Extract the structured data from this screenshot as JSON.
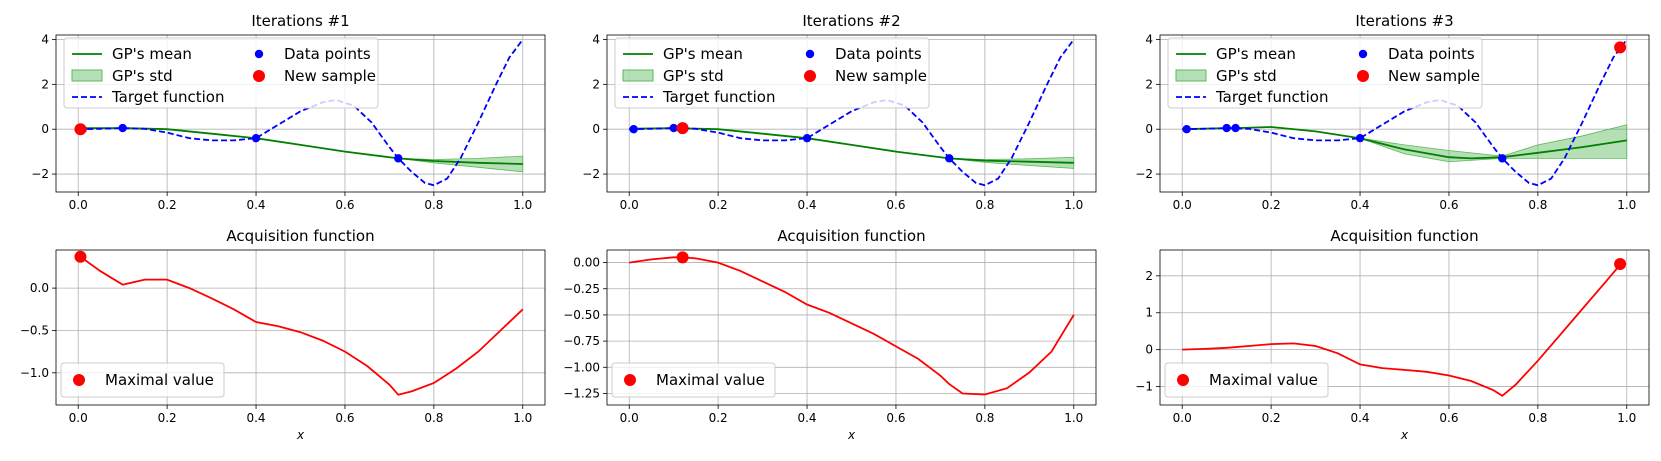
{
  "colors": {
    "mean": "#008000",
    "std_fill": "#5cb85c",
    "target": "#0000ff",
    "data_point": "#0000ff",
    "new_sample": "#ff0000",
    "acquisition": "#ff0000",
    "grid": "#b0b0b0"
  },
  "chart_data": [
    {
      "type": "line",
      "title": "Iterations #1",
      "xlabel": "",
      "ylabel": "",
      "xlim": [
        -0.05,
        1.05
      ],
      "ylim": [
        -2.8,
        4.2
      ],
      "xticks": [
        0.0,
        0.2,
        0.4,
        0.6,
        0.8,
        1.0
      ],
      "xtick_labels": [
        "0.0",
        "0.2",
        "0.4",
        "0.6",
        "0.8",
        "1.0"
      ],
      "yticks": [
        -2,
        0,
        2,
        4
      ],
      "ytick_labels": [
        "−2",
        "0",
        "2",
        "4"
      ],
      "legend": [
        "GP's mean",
        "GP's std",
        "Target function",
        "Data points",
        "New sample"
      ],
      "series": [
        {
          "name": "Target function",
          "x": [
            0,
            0.05,
            0.1,
            0.15,
            0.2,
            0.25,
            0.3,
            0.35,
            0.4,
            0.45,
            0.5,
            0.55,
            0.58,
            0.62,
            0.66,
            0.7,
            0.72,
            0.75,
            0.78,
            0.8,
            0.83,
            0.86,
            0.9,
            0.94,
            0.97,
            1.0
          ],
          "y": [
            0,
            0.02,
            0.05,
            0.02,
            -0.15,
            -0.4,
            -0.5,
            -0.5,
            -0.4,
            0.2,
            0.8,
            1.2,
            1.3,
            1.05,
            0.3,
            -0.8,
            -1.3,
            -1.9,
            -2.4,
            -2.5,
            -2.2,
            -1.3,
            0.3,
            2.0,
            3.2,
            4.0
          ]
        },
        {
          "name": "GP's mean",
          "x": [
            0,
            0.1,
            0.2,
            0.3,
            0.4,
            0.5,
            0.6,
            0.72,
            0.8,
            0.9,
            1.0
          ],
          "y": [
            0.05,
            0.05,
            0.0,
            -0.2,
            -0.4,
            -0.7,
            -1.0,
            -1.3,
            -1.42,
            -1.5,
            -1.55
          ]
        },
        {
          "name": "GP's std upper",
          "x": [
            0.72,
            0.8,
            0.9,
            1.0
          ],
          "y": [
            -1.3,
            -1.35,
            -1.3,
            -1.2
          ]
        },
        {
          "name": "GP's std lower",
          "x": [
            0.72,
            0.8,
            0.9,
            1.0
          ],
          "y": [
            -1.3,
            -1.5,
            -1.7,
            -1.9
          ]
        },
        {
          "name": "Data points",
          "x": [
            0.01,
            0.1,
            0.4,
            0.72
          ],
          "y": [
            0.0,
            0.05,
            -0.4,
            -1.3
          ]
        },
        {
          "name": "New sample",
          "x": [
            0.005
          ],
          "y": [
            0.0
          ]
        }
      ]
    },
    {
      "type": "line",
      "title": "Iterations #2",
      "xlabel": "",
      "ylabel": "",
      "xlim": [
        -0.05,
        1.05
      ],
      "ylim": [
        -2.8,
        4.2
      ],
      "xticks": [
        0.0,
        0.2,
        0.4,
        0.6,
        0.8,
        1.0
      ],
      "xtick_labels": [
        "0.0",
        "0.2",
        "0.4",
        "0.6",
        "0.8",
        "1.0"
      ],
      "yticks": [
        -2,
        0,
        2,
        4
      ],
      "ytick_labels": [
        "−2",
        "0",
        "2",
        "4"
      ],
      "legend": [
        "GP's mean",
        "GP's std",
        "Target function",
        "Data points",
        "New sample"
      ],
      "series": [
        {
          "name": "Target function",
          "x": [
            0,
            0.05,
            0.1,
            0.15,
            0.2,
            0.25,
            0.3,
            0.35,
            0.4,
            0.45,
            0.5,
            0.55,
            0.58,
            0.62,
            0.66,
            0.7,
            0.72,
            0.75,
            0.78,
            0.8,
            0.83,
            0.86,
            0.9,
            0.94,
            0.97,
            1.0
          ],
          "y": [
            0,
            0.02,
            0.05,
            0.02,
            -0.15,
            -0.4,
            -0.5,
            -0.5,
            -0.4,
            0.2,
            0.8,
            1.2,
            1.3,
            1.05,
            0.3,
            -0.8,
            -1.3,
            -1.9,
            -2.4,
            -2.5,
            -2.2,
            -1.3,
            0.3,
            2.0,
            3.2,
            4.0
          ]
        },
        {
          "name": "GP's mean",
          "x": [
            0,
            0.1,
            0.2,
            0.3,
            0.4,
            0.5,
            0.6,
            0.72,
            0.8,
            0.9,
            1.0
          ],
          "y": [
            0.02,
            0.05,
            0.0,
            -0.2,
            -0.4,
            -0.7,
            -1.0,
            -1.3,
            -1.4,
            -1.45,
            -1.5
          ]
        },
        {
          "name": "GP's std upper",
          "x": [
            0.72,
            0.8,
            0.9,
            1.0
          ],
          "y": [
            -1.3,
            -1.35,
            -1.32,
            -1.25
          ]
        },
        {
          "name": "GP's std lower",
          "x": [
            0.72,
            0.8,
            0.9,
            1.0
          ],
          "y": [
            -1.3,
            -1.48,
            -1.62,
            -1.75
          ]
        },
        {
          "name": "Data points",
          "x": [
            0.01,
            0.1,
            0.4,
            0.72
          ],
          "y": [
            0.0,
            0.05,
            -0.4,
            -1.3
          ]
        },
        {
          "name": "New sample",
          "x": [
            0.12
          ],
          "y": [
            0.05
          ]
        }
      ]
    },
    {
      "type": "line",
      "title": "Iterations #3",
      "xlabel": "",
      "ylabel": "",
      "xlim": [
        -0.05,
        1.05
      ],
      "ylim": [
        -2.8,
        4.2
      ],
      "xticks": [
        0.0,
        0.2,
        0.4,
        0.6,
        0.8,
        1.0
      ],
      "xtick_labels": [
        "0.0",
        "0.2",
        "0.4",
        "0.6",
        "0.8",
        "1.0"
      ],
      "yticks": [
        -2,
        0,
        2,
        4
      ],
      "ytick_labels": [
        "−2",
        "0",
        "2",
        "4"
      ],
      "legend": [
        "GP's mean",
        "GP's std",
        "Target function",
        "Data points",
        "New sample"
      ],
      "series": [
        {
          "name": "Target function",
          "x": [
            0,
            0.05,
            0.1,
            0.15,
            0.2,
            0.25,
            0.3,
            0.35,
            0.4,
            0.45,
            0.5,
            0.55,
            0.58,
            0.62,
            0.66,
            0.7,
            0.72,
            0.75,
            0.78,
            0.8,
            0.83,
            0.86,
            0.9,
            0.94,
            0.97,
            1.0
          ],
          "y": [
            0,
            0.02,
            0.05,
            0.02,
            -0.15,
            -0.4,
            -0.5,
            -0.5,
            -0.4,
            0.2,
            0.8,
            1.2,
            1.3,
            1.05,
            0.3,
            -0.8,
            -1.3,
            -1.9,
            -2.4,
            -2.5,
            -2.2,
            -1.3,
            0.3,
            2.0,
            3.2,
            4.0
          ]
        },
        {
          "name": "GP's mean",
          "x": [
            0,
            0.1,
            0.12,
            0.2,
            0.3,
            0.4,
            0.5,
            0.6,
            0.65,
            0.72,
            0.8,
            0.9,
            1.0
          ],
          "y": [
            0.0,
            0.05,
            0.05,
            0.1,
            -0.1,
            -0.4,
            -0.9,
            -1.25,
            -1.3,
            -1.25,
            -1.05,
            -0.8,
            -0.5
          ]
        },
        {
          "name": "GP's std upper",
          "x": [
            0.4,
            0.5,
            0.6,
            0.72,
            0.8,
            0.9,
            1.0
          ],
          "y": [
            -0.4,
            -0.7,
            -0.95,
            -1.2,
            -0.7,
            -0.3,
            0.2
          ]
        },
        {
          "name": "GP's std lower",
          "x": [
            0.4,
            0.5,
            0.6,
            0.72,
            0.8,
            0.9,
            1.0
          ],
          "y": [
            -0.4,
            -1.1,
            -1.45,
            -1.3,
            -1.3,
            -1.3,
            -1.3
          ]
        },
        {
          "name": "Data points",
          "x": [
            0.01,
            0.1,
            0.12,
            0.4,
            0.72
          ],
          "y": [
            0.0,
            0.05,
            0.05,
            -0.4,
            -1.3
          ]
        },
        {
          "name": "New sample",
          "x": [
            0.985
          ],
          "y": [
            3.65
          ]
        }
      ]
    },
    {
      "type": "line",
      "title": "Acquisition function",
      "xlabel": "x",
      "ylabel": "",
      "xlim": [
        -0.05,
        1.05
      ],
      "ylim": [
        -1.38,
        0.45
      ],
      "xticks": [
        0.0,
        0.2,
        0.4,
        0.6,
        0.8,
        1.0
      ],
      "xtick_labels": [
        "0.0",
        "0.2",
        "0.4",
        "0.6",
        "0.8",
        "1.0"
      ],
      "yticks": [
        0.0,
        -0.5,
        -1.0
      ],
      "ytick_labels": [
        "0.0",
        "−0.5",
        "−1.0"
      ],
      "legend": [
        "Maximal value"
      ],
      "series": [
        {
          "name": "Acquisition",
          "x": [
            0.005,
            0.05,
            0.1,
            0.15,
            0.2,
            0.25,
            0.3,
            0.35,
            0.4,
            0.45,
            0.5,
            0.55,
            0.6,
            0.65,
            0.7,
            0.72,
            0.75,
            0.8,
            0.85,
            0.9,
            0.95,
            1.0
          ],
          "y": [
            0.37,
            0.2,
            0.04,
            0.1,
            0.1,
            0.0,
            -0.12,
            -0.25,
            -0.4,
            -0.45,
            -0.52,
            -0.62,
            -0.75,
            -0.92,
            -1.14,
            -1.26,
            -1.22,
            -1.12,
            -0.95,
            -0.75,
            -0.5,
            -0.25
          ]
        },
        {
          "name": "Maximal value",
          "x": [
            0.005
          ],
          "y": [
            0.37
          ]
        }
      ]
    },
    {
      "type": "line",
      "title": "Acquisition function",
      "xlabel": "x",
      "ylabel": "",
      "xlim": [
        -0.05,
        1.05
      ],
      "ylim": [
        -1.36,
        0.12
      ],
      "xticks": [
        0.0,
        0.2,
        0.4,
        0.6,
        0.8,
        1.0
      ],
      "xtick_labels": [
        "0.0",
        "0.2",
        "0.4",
        "0.6",
        "0.8",
        "1.0"
      ],
      "yticks": [
        0.0,
        -0.25,
        -0.5,
        -0.75,
        -1.0,
        -1.25
      ],
      "ytick_labels": [
        "0.00",
        "−0.25",
        "−0.50",
        "−0.75",
        "−1.00",
        "−1.25"
      ],
      "legend": [
        "Maximal value"
      ],
      "series": [
        {
          "name": "Acquisition",
          "x": [
            0,
            0.05,
            0.1,
            0.12,
            0.15,
            0.2,
            0.25,
            0.3,
            0.35,
            0.4,
            0.45,
            0.5,
            0.55,
            0.6,
            0.65,
            0.7,
            0.72,
            0.75,
            0.8,
            0.85,
            0.9,
            0.95,
            1.0
          ],
          "y": [
            0.0,
            0.03,
            0.05,
            0.05,
            0.04,
            0.0,
            -0.08,
            -0.18,
            -0.28,
            -0.4,
            -0.48,
            -0.58,
            -0.68,
            -0.8,
            -0.92,
            -1.08,
            -1.16,
            -1.25,
            -1.26,
            -1.2,
            -1.05,
            -0.85,
            -0.5
          ]
        },
        {
          "name": "Maximal value",
          "x": [
            0.12
          ],
          "y": [
            0.05
          ]
        }
      ]
    },
    {
      "type": "line",
      "title": "Acquisition function",
      "xlabel": "x",
      "ylabel": "",
      "xlim": [
        -0.05,
        1.05
      ],
      "ylim": [
        -1.5,
        2.7
      ],
      "xticks": [
        0.0,
        0.2,
        0.4,
        0.6,
        0.8,
        1.0
      ],
      "xtick_labels": [
        "0.0",
        "0.2",
        "0.4",
        "0.6",
        "0.8",
        "1.0"
      ],
      "yticks": [
        2,
        1,
        0,
        -1
      ],
      "ytick_labels": [
        "2",
        "1",
        "0",
        "−1"
      ],
      "legend": [
        "Maximal value"
      ],
      "series": [
        {
          "name": "Acquisition",
          "x": [
            0,
            0.05,
            0.1,
            0.15,
            0.2,
            0.25,
            0.3,
            0.35,
            0.4,
            0.45,
            0.5,
            0.55,
            0.6,
            0.65,
            0.7,
            0.72,
            0.75,
            0.8,
            0.85,
            0.9,
            0.95,
            0.985
          ],
          "y": [
            0.0,
            0.02,
            0.05,
            0.1,
            0.15,
            0.17,
            0.1,
            -0.1,
            -0.4,
            -0.5,
            -0.55,
            -0.6,
            -0.7,
            -0.85,
            -1.1,
            -1.25,
            -0.95,
            -0.3,
            0.4,
            1.1,
            1.8,
            2.3
          ]
        },
        {
          "name": "Maximal value",
          "x": [
            0.985
          ],
          "y": [
            2.32
          ]
        }
      ]
    }
  ]
}
